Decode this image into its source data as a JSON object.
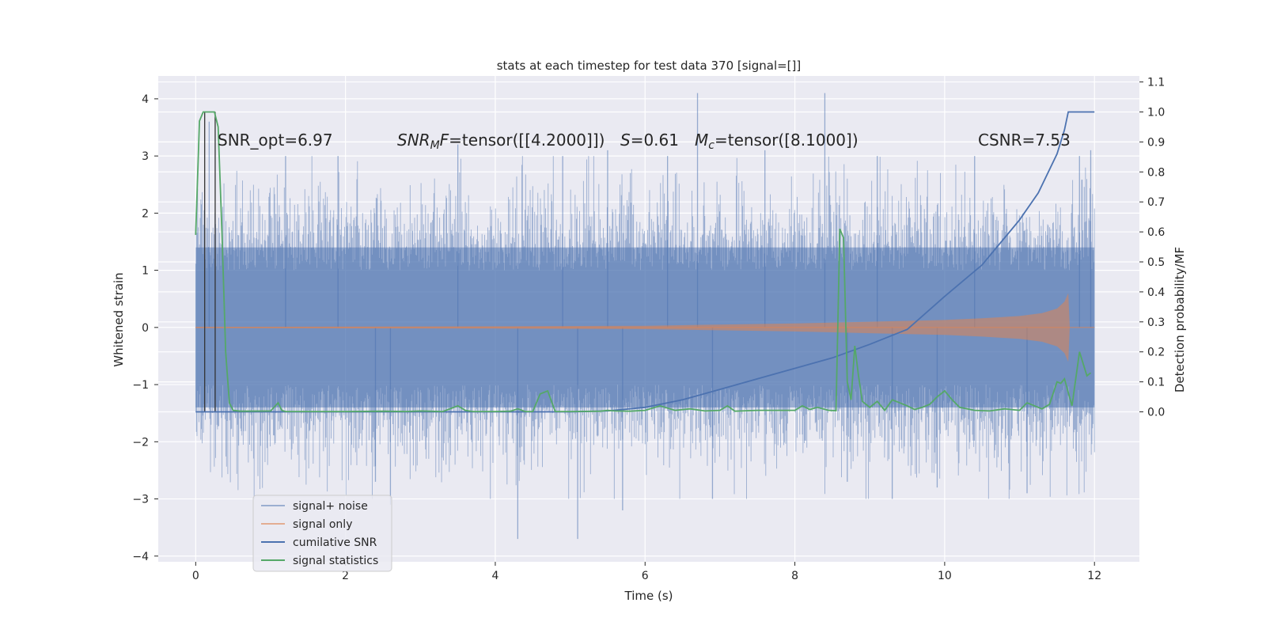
{
  "chart_data": {
    "type": "line",
    "title": "stats at each timestep for test data 370 [signal=[]]",
    "xlabel": "Time (s)",
    "ylabel": "Whitened strain",
    "ylabel_right": "Detection probability/MF",
    "xlim": [
      -0.5,
      12.6
    ],
    "ylim": [
      -4.1,
      4.4
    ],
    "ylim_right": [
      -0.5,
      1.12
    ],
    "x_ticks": [
      0,
      2,
      4,
      6,
      8,
      10,
      12
    ],
    "y_ticks": [
      -4,
      -3,
      -2,
      -1,
      0,
      1,
      2,
      3,
      4
    ],
    "y_right_ticks": [
      0.0,
      0.1,
      0.2,
      0.3,
      0.4,
      0.5,
      0.6,
      0.7,
      0.8,
      0.9,
      1.0,
      1.1
    ],
    "x_tick_labels": [
      "0",
      "2",
      "4",
      "6",
      "8",
      "10",
      "12"
    ],
    "y_tick_labels": [
      "−4",
      "−3",
      "−2",
      "−1",
      "0",
      "1",
      "2",
      "3",
      "4"
    ],
    "y_right_tick_labels": [
      "0.0",
      "0.1",
      "0.2",
      "0.3",
      "0.4",
      "0.5",
      "0.6",
      "0.7",
      "0.8",
      "0.9",
      "1.0",
      "1.1"
    ],
    "grid": true,
    "legend_position": "lower-left",
    "annotations": {
      "snr_opt": "SNR_opt=6.97",
      "snr_mf_sym": "SNR",
      "snr_mf_sub": "M",
      "snr_mf_f": "F",
      "snr_mf_value": "=tensor([[4.2000]])",
      "s_sym": "S",
      "s_value": "=0.61",
      "mc_sym": "M",
      "mc_sub": "c",
      "mc_value": "=tensor([8.1000])",
      "csnr": "CSNR=7.53"
    },
    "colors": {
      "signal_noise": "#4c72b0",
      "signal_only": "#dd8452",
      "cumulative_snr": "#4c72b0",
      "signal_statistics": "#55a868",
      "vlines": "#333333",
      "background": "#eaeaf2"
    },
    "vertical_lines_x": [
      0.12,
      0.26
    ],
    "series": [
      {
        "name": "signal+ noise",
        "axis": "left",
        "kind": "noise-band",
        "x_range": [
          0,
          12
        ],
        "core_range": [
          -1.4,
          1.4
        ],
        "typical_peak_range": [
          -2.2,
          2.2
        ],
        "spikes": [
          {
            "x": 0.18,
            "y": 3.6
          },
          {
            "x": 1.2,
            "y": 3.0
          },
          {
            "x": 1.9,
            "y": 3.0
          },
          {
            "x": 2.4,
            "y": -2.7
          },
          {
            "x": 2.6,
            "y": -3.1
          },
          {
            "x": 3.5,
            "y": 3.2
          },
          {
            "x": 4.3,
            "y": -3.7
          },
          {
            "x": 4.9,
            "y": 3.0
          },
          {
            "x": 5.1,
            "y": -3.7
          },
          {
            "x": 5.5,
            "y": 3.1
          },
          {
            "x": 5.7,
            "y": -3.2
          },
          {
            "x": 6.3,
            "y": 3.0
          },
          {
            "x": 6.7,
            "y": 4.1
          },
          {
            "x": 6.9,
            "y": -3.0
          },
          {
            "x": 7.6,
            "y": 3.1
          },
          {
            "x": 8.4,
            "y": 4.1
          },
          {
            "x": 8.7,
            "y": -2.7
          },
          {
            "x": 9.1,
            "y": 3.0
          },
          {
            "x": 9.3,
            "y": -3.0
          },
          {
            "x": 9.9,
            "y": -2.8
          },
          {
            "x": 10.4,
            "y": 3.0
          },
          {
            "x": 11.1,
            "y": -2.9
          },
          {
            "x": 11.8,
            "y": 3.0
          },
          {
            "x": 11.95,
            "y": 3.1
          }
        ]
      },
      {
        "name": "signal only",
        "axis": "left",
        "kind": "chirp-envelope",
        "x": [
          0,
          4,
          6,
          7,
          8,
          9,
          10,
          10.5,
          11,
          11.3,
          11.5,
          11.6,
          11.65,
          11.67,
          12
        ],
        "amplitude": [
          0.01,
          0.02,
          0.03,
          0.05,
          0.07,
          0.1,
          0.13,
          0.16,
          0.2,
          0.25,
          0.33,
          0.45,
          0.6,
          0.0,
          0.0
        ]
      },
      {
        "name": "cumilative SNR",
        "axis": "right",
        "x": [
          0,
          5,
          5.5,
          6,
          6.5,
          7,
          7.5,
          8,
          8.5,
          9,
          9.5,
          10,
          10.5,
          11,
          11.25,
          11.5,
          11.6,
          11.65,
          12
        ],
        "values": [
          0,
          0,
          0.003,
          0.015,
          0.04,
          0.075,
          0.11,
          0.145,
          0.18,
          0.225,
          0.275,
          0.385,
          0.49,
          0.64,
          0.73,
          0.86,
          0.94,
          1.0,
          1.0
        ]
      },
      {
        "name": "signal statistics",
        "axis": "right",
        "x": [
          0,
          0.05,
          0.1,
          0.15,
          0.25,
          0.3,
          0.35,
          0.4,
          0.45,
          0.5,
          0.6,
          1.0,
          1.1,
          1.15,
          1.2,
          1.5,
          2.0,
          2.5,
          2.8,
          3.0,
          3.3,
          3.5,
          3.6,
          3.7,
          4.0,
          4.2,
          4.3,
          4.4,
          4.5,
          4.6,
          4.7,
          4.8,
          5.0,
          5.4,
          5.5,
          5.6,
          5.8,
          6.0,
          6.2,
          6.4,
          6.6,
          6.8,
          7.0,
          7.1,
          7.2,
          7.5,
          8.0,
          8.1,
          8.2,
          8.3,
          8.45,
          8.55,
          8.6,
          8.65,
          8.7,
          8.75,
          8.8,
          8.85,
          8.9,
          9.0,
          9.1,
          9.2,
          9.3,
          9.4,
          9.5,
          9.6,
          9.7,
          9.8,
          9.9,
          10.0,
          10.1,
          10.2,
          10.4,
          10.6,
          10.8,
          11.0,
          11.1,
          11.2,
          11.3,
          11.4,
          11.5,
          11.55,
          11.6,
          11.7,
          11.8,
          11.9,
          11.95
        ],
        "values": [
          0.59,
          0.97,
          1.0,
          1.0,
          1.0,
          0.95,
          0.6,
          0.2,
          0.03,
          0.005,
          0.002,
          0.003,
          0.03,
          0.005,
          0.001,
          0.001,
          0.001,
          0.002,
          0.001,
          0.003,
          0.001,
          0.02,
          0.005,
          0.001,
          0.001,
          0.002,
          0.01,
          0.001,
          0.001,
          0.06,
          0.07,
          0.001,
          0.001,
          0.002,
          0.005,
          0.003,
          0.002,
          0.005,
          0.02,
          0.005,
          0.01,
          0.003,
          0.005,
          0.02,
          0.002,
          0.005,
          0.005,
          0.02,
          0.008,
          0.015,
          0.005,
          0.004,
          0.61,
          0.58,
          0.1,
          0.04,
          0.22,
          0.12,
          0.035,
          0.015,
          0.035,
          0.005,
          0.04,
          0.03,
          0.02,
          0.008,
          0.015,
          0.025,
          0.05,
          0.07,
          0.04,
          0.015,
          0.005,
          0.003,
          0.01,
          0.005,
          0.03,
          0.02,
          0.01,
          0.025,
          0.1,
          0.095,
          0.11,
          0.02,
          0.2,
          0.12,
          0.13
        ]
      }
    ]
  }
}
